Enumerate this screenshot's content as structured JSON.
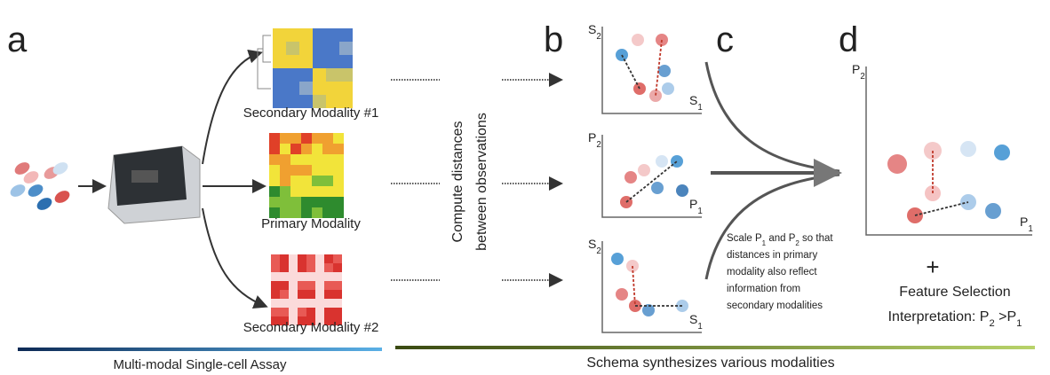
{
  "panel_labels": [
    "a",
    "b",
    "c",
    "d"
  ],
  "panel_a": {
    "modalities": [
      "Secondary Modality #1",
      "Primary Modality",
      "Secondary Modality #2"
    ],
    "caption": "Multi-modal Single-cell Assay"
  },
  "compute_label": [
    "Compute distances",
    "between observations"
  ],
  "panel_b": {
    "plots": [
      {
        "x": {
          "base": "S",
          "sub": "1"
        },
        "y": {
          "base": "S",
          "sub": "2"
        }
      },
      {
        "x": {
          "base": "P",
          "sub": "1"
        },
        "y": {
          "base": "P",
          "sub": "2"
        }
      },
      {
        "x": {
          "base": "S",
          "sub": "1"
        },
        "y": {
          "base": "S",
          "sub": "2"
        }
      }
    ]
  },
  "panel_c": {
    "lines": [
      [
        {
          "text": "Scale P"
        },
        {
          "sub": "1"
        },
        {
          "text": " and P"
        },
        {
          "sub": "2"
        },
        {
          "text": " so that"
        }
      ],
      [
        {
          "text": "distances in primary"
        }
      ],
      [
        {
          "text": "modality also reflect"
        }
      ],
      [
        {
          "text": "information from"
        }
      ],
      [
        {
          "text": "secondary modalities"
        }
      ]
    ]
  },
  "panel_d": {
    "x": {
      "base": "P",
      "sub": "1"
    },
    "y": {
      "base": "P",
      "sub": "2"
    },
    "plus": "+",
    "feature": "Feature Selection",
    "interpretation": [
      {
        "text": "Interpretation: P"
      },
      {
        "sub": "2"
      },
      {
        "text": " >P"
      },
      {
        "sub": "1"
      }
    ]
  },
  "caption": "Schema synthesizes various modalities"
}
